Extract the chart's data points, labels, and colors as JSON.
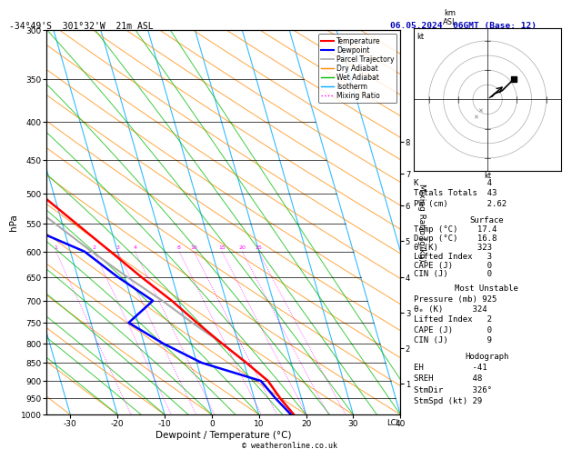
{
  "title_left": "-34°49'S  301°32'W  21m ASL",
  "title_right": "06.05.2024  06GMT (Base: 12)",
  "xlabel": "Dewpoint / Temperature (°C)",
  "pressure_levels": [
    300,
    350,
    400,
    450,
    500,
    550,
    600,
    650,
    700,
    750,
    800,
    850,
    900,
    950,
    1000
  ],
  "xlim": [
    -35,
    40
  ],
  "temp_color": "#ff0000",
  "dewp_color": "#0000ff",
  "parcel_color": "#aaaaaa",
  "dry_adiabat_color": "#ff8800",
  "wet_adiabat_color": "#00bb00",
  "isotherm_color": "#00aaff",
  "mixing_ratio_color": "#ff00ff",
  "km_ticks": [
    1,
    2,
    3,
    4,
    5,
    6,
    7,
    8
  ],
  "km_pressures": [
    907,
    812,
    727,
    650,
    580,
    519,
    470,
    426
  ],
  "stats_K": 4,
  "stats_TT": 43,
  "stats_PW": 2.62,
  "surf_temp": 17.4,
  "surf_dewp": 16.8,
  "surf_thetae": 323,
  "surf_LI": 3,
  "surf_CAPE": 0,
  "surf_CIN": 0,
  "mu_pressure": 925,
  "mu_thetae": 324,
  "mu_LI": 2,
  "mu_CAPE": 0,
  "mu_CIN": 9,
  "hodo_EH": -41,
  "hodo_SREH": 48,
  "hodo_StmDir": 326,
  "hodo_StmSpd": 29,
  "copyright": "© weatheronline.co.uk"
}
